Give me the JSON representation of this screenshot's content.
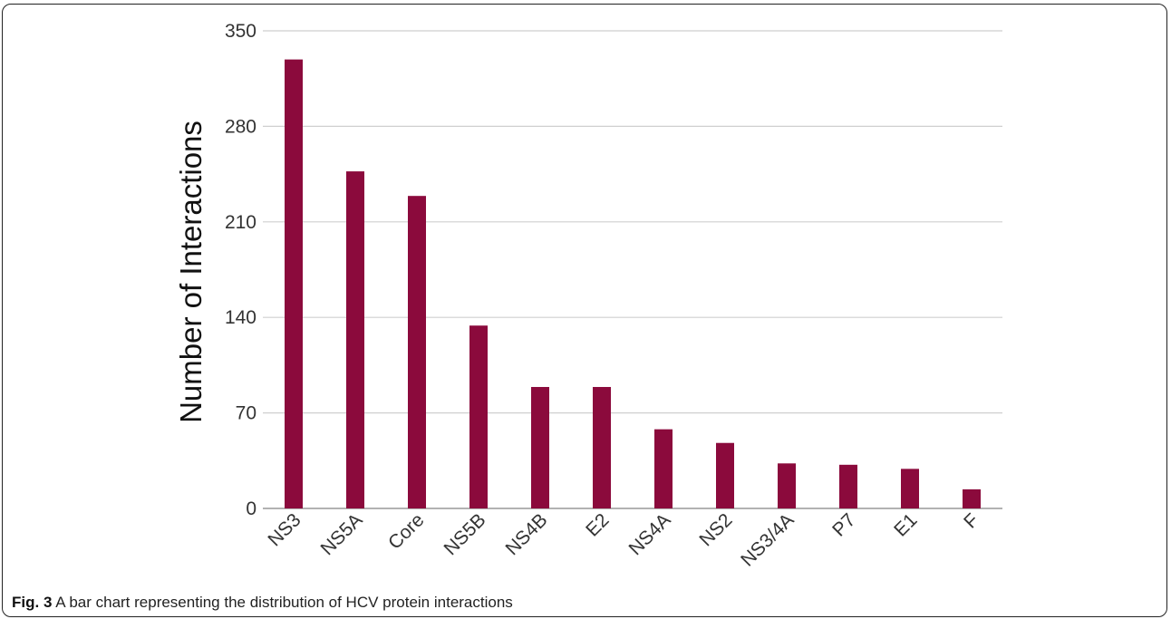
{
  "chart_data": {
    "type": "bar",
    "ylabel": "Number of Interactions",
    "ylim": [
      0,
      350
    ],
    "yticks": [
      0,
      70,
      140,
      210,
      280,
      350
    ],
    "categories": [
      "NS3",
      "NS5A",
      "Core",
      "NS5B",
      "NS4B",
      "E2",
      "NS4A",
      "NS2",
      "NS3/4A",
      "P7",
      "E1",
      "F"
    ],
    "values": [
      329,
      247,
      229,
      134,
      89,
      89,
      58,
      48,
      33,
      32,
      29,
      14
    ],
    "bar_color": "#8b0a3c",
    "grid": true
  },
  "caption": {
    "label": "Fig. 3",
    "text": " A bar chart representing the distribution of HCV protein interactions"
  }
}
